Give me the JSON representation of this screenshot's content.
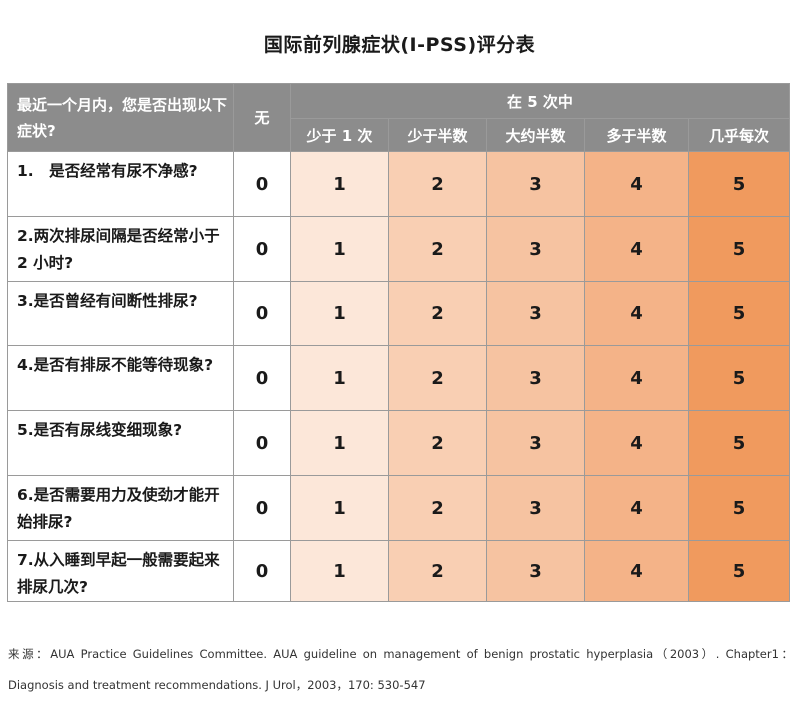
{
  "title": "国际前列腺症状(I-PSS)评分表",
  "header": {
    "question_col": "最近一个月内，您是否出现以下症状?",
    "none": "无",
    "freq_group": "在 5 次中",
    "freq_labels": [
      "少于 1 次",
      "少于半数",
      "大约半数",
      "多于半数",
      "几乎每次"
    ]
  },
  "rows": [
    {
      "question": "1.　是否经常有尿不净感?",
      "scores": [
        "0",
        "1",
        "2",
        "3",
        "4",
        "5"
      ]
    },
    {
      "question": "2.两次排尿间隔是否经常小于 2 小时?",
      "scores": [
        "0",
        "1",
        "2",
        "3",
        "4",
        "5"
      ]
    },
    {
      "question": "3.是否曾经有间断性排尿?",
      "scores": [
        "0",
        "1",
        "2",
        "3",
        "4",
        "5"
      ]
    },
    {
      "question": "4.是否有排尿不能等待现象?",
      "scores": [
        "0",
        "1",
        "2",
        "3",
        "4",
        "5"
      ]
    },
    {
      "question": "5.是否有尿线变细现象?",
      "scores": [
        "0",
        "1",
        "2",
        "3",
        "4",
        "5"
      ]
    },
    {
      "question": "6.是否需要用力及使劲才能开始排尿?",
      "scores": [
        "0",
        "1",
        "2",
        "3",
        "4",
        "5"
      ]
    },
    {
      "question": "7.从入睡到早起一般需要起来排尿几次?",
      "scores": [
        "0",
        "1",
        "2",
        "3",
        "4",
        "5"
      ]
    }
  ],
  "source": "来源：AUA Practice Guidelines Committee. AUA guideline on management of benign prostatic hyperplasia（2003）. Chapter1：Diagnosis and treatment recommendations. J Urol，2003，170: 530-547",
  "colors": {
    "header_bg": "#8c8c8c",
    "score_bg": [
      "#ffffff",
      "#fce7d9",
      "#f9cfb3",
      "#f6c3a1",
      "#f4b388",
      "#f09a5e"
    ]
  }
}
